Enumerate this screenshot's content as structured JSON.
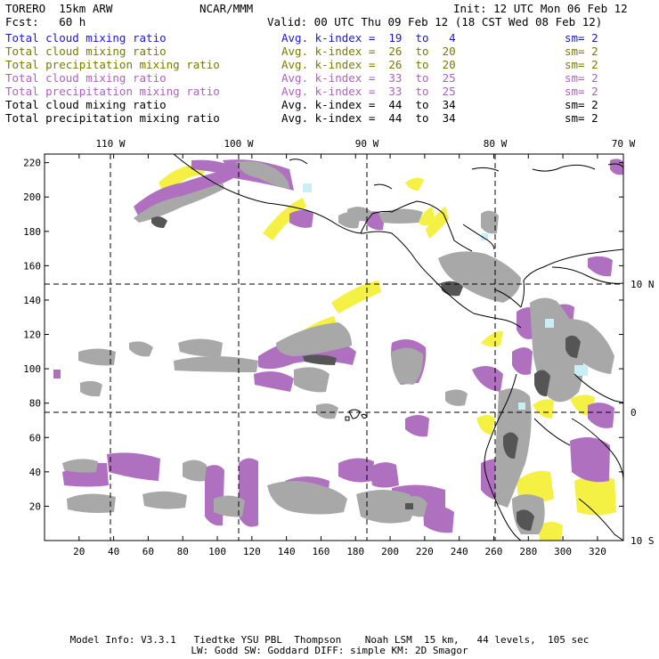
{
  "header": {
    "model": "TORERO  15km ARW",
    "org": "NCAR/MMM",
    "init": "Init: 12 UTC Mon 06 Feb 12",
    "fcst": "Fcst:   60 h",
    "valid": "Valid: 00 UTC Thu 09 Feb 12 (18 CST Wed 08 Feb 12)"
  },
  "legend": [
    {
      "label": "Total cloud mixing ratio",
      "kindex": "Avg. k-index =  19  to   4",
      "sm": "sm= 2",
      "color": "#1a1ac8"
    },
    {
      "label": "Total cloud mixing ratio",
      "kindex": "Avg. k-index =  26  to  20",
      "sm": "sm= 2",
      "color": "#7a7a00"
    },
    {
      "label": "Total precipitation mixing ratio",
      "kindex": "Avg. k-index =  26  to  20",
      "sm": "sm= 2",
      "color": "#7a7a00"
    },
    {
      "label": "Total cloud mixing ratio",
      "kindex": "Avg. k-index =  33  to  25",
      "sm": "sm= 2",
      "color": "#b060c0"
    },
    {
      "label": "Total precipitation mixing ratio",
      "kindex": "Avg. k-index =  33  to  25",
      "sm": "sm= 2",
      "color": "#b060c0"
    },
    {
      "label": "Total cloud mixing ratio",
      "kindex": "Avg. k-index =  44  to  34",
      "sm": "sm= 2",
      "color": "#000000"
    },
    {
      "label": "Total precipitation mixing ratio",
      "kindex": "Avg. k-index =  44  to  34",
      "sm": "sm= 2",
      "color": "#000000"
    }
  ],
  "map": {
    "top_lon_labels": [
      "110 W",
      "100 W",
      "90 W",
      "80 W",
      "70 W"
    ],
    "right_lat_labels": [
      "10 N",
      "0",
      "10 S"
    ],
    "y_ticks": [
      "20",
      "40",
      "60",
      "80",
      "100",
      "120",
      "140",
      "160",
      "180",
      "200",
      "220"
    ],
    "x_ticks": [
      "20",
      "40",
      "60",
      "80",
      "100",
      "120",
      "140",
      "160",
      "180",
      "200",
      "220",
      "240",
      "260",
      "280",
      "300",
      "320"
    ],
    "colors": {
      "gray": "#a8a8a8",
      "dark": "#555555",
      "purple": "#b070c0",
      "yellow": "#f4f044",
      "cyan": "#c8eef6",
      "coast": "#000000"
    }
  },
  "footer": {
    "line1": "Model Info: V3.3.1   Tiedtke YSU PBL  Thompson    Noah LSM  15 km,   44 levels,  105 sec",
    "line2": "LW: Godd SW: Goddard DIFF: simple KM: 2D Smagor"
  }
}
